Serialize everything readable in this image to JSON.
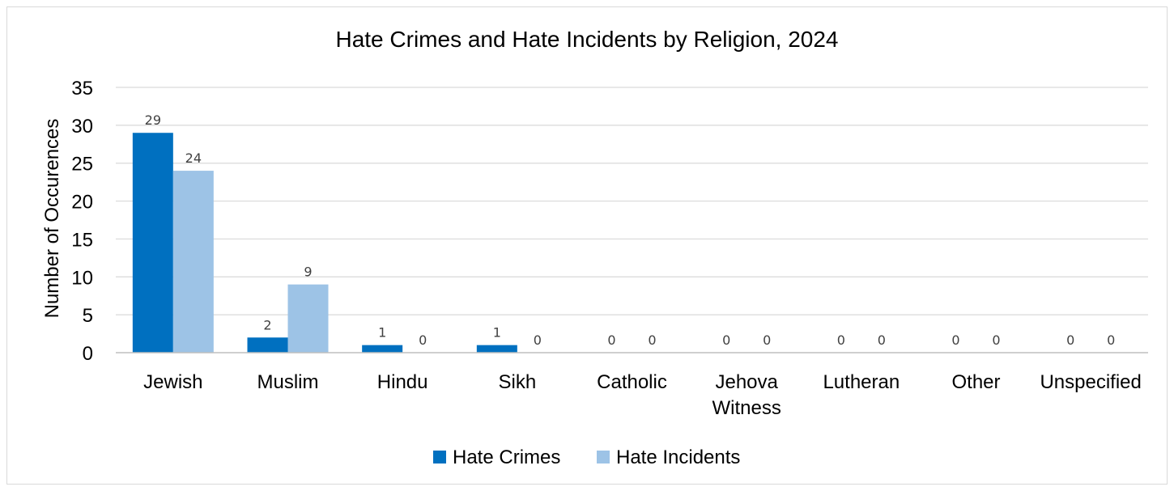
{
  "chart_data": {
    "type": "bar",
    "title": "Hate Crimes and Hate Incidents by Religion, 2024",
    "ylabel": "Number of Occurences",
    "xlabel": "",
    "ylim": [
      0,
      35
    ],
    "yticks": [
      0,
      5,
      10,
      15,
      20,
      25,
      30,
      35
    ],
    "grid": true,
    "legend_position": "bottom",
    "categories": [
      [
        "Jewish"
      ],
      [
        "Muslim"
      ],
      [
        "Hindu"
      ],
      [
        "Sikh"
      ],
      [
        "Catholic"
      ],
      [
        "Jehova",
        "Witness"
      ],
      [
        "Lutheran"
      ],
      [
        "Other"
      ],
      [
        "Unspecified"
      ]
    ],
    "series": [
      {
        "name": "Hate Crimes",
        "color": "#0070c0",
        "values": [
          29,
          2,
          1,
          1,
          0,
          0,
          0,
          0,
          0
        ]
      },
      {
        "name": "Hate Incidents",
        "color": "#9dc3e6",
        "values": [
          24,
          9,
          0,
          0,
          0,
          0,
          0,
          0,
          0
        ]
      }
    ],
    "gridline_color": "#d9d9d9",
    "axis_line_color": "#bfbfbf"
  }
}
